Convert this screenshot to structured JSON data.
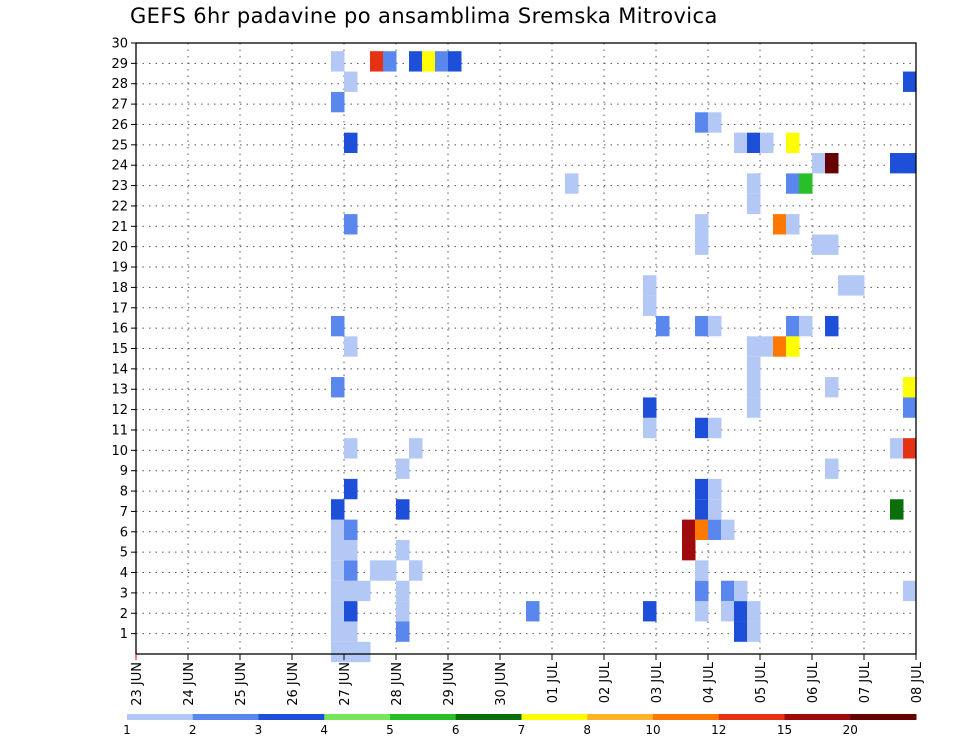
{
  "chart_data": {
    "type": "heatmap",
    "title": "GEFS 6hr padavine po ansamblima Sremska Mitrovica",
    "xlabel": "",
    "ylabel": "",
    "x_tick_labels": [
      "23 JUN",
      "24 JUN",
      "25 JUN",
      "26 JUN",
      "27 JUN",
      "28 JUN",
      "29 JUN",
      "30 JUN",
      "01 JUL",
      "02 JUL",
      "03 JUL",
      "04 JUL",
      "05 JUL",
      "06 JUL",
      "07 JUL",
      "08 JUL"
    ],
    "y_tick_labels": [
      "1",
      "2",
      "3",
      "4",
      "5",
      "6",
      "7",
      "8",
      "9",
      "10",
      "11",
      "12",
      "13",
      "14",
      "15",
      "16",
      "17",
      "18",
      "19",
      "20",
      "21",
      "22",
      "23",
      "24",
      "25",
      "26",
      "27",
      "28",
      "29",
      "30"
    ],
    "x_range_steps": [
      0,
      60
    ],
    "y_range_members": [
      0,
      30
    ],
    "grid": true,
    "legend_placement": "bottom",
    "legend": {
      "labels": [
        "1",
        "2",
        "3",
        "4",
        "5",
        "6",
        "7",
        "8",
        "10",
        "12",
        "15",
        "20"
      ],
      "colors": [
        "#b4c8f5",
        "#5a87ee",
        "#1e4fd8",
        "#78e65a",
        "#28bf28",
        "#0a6e0a",
        "#ffff00",
        "#ffb428",
        "#ff7800",
        "#e63214",
        "#a00a0a",
        "#640000"
      ]
    },
    "cells": [
      [
        15,
        0,
        1
      ],
      [
        15,
        1,
        1
      ],
      [
        16,
        1,
        1
      ],
      [
        15,
        2,
        1
      ],
      [
        15,
        3,
        1
      ],
      [
        15,
        4,
        1
      ],
      [
        15,
        5,
        1
      ],
      [
        15,
        6,
        1
      ],
      [
        15,
        7,
        1
      ],
      [
        16,
        0,
        1
      ],
      [
        17,
        0,
        1
      ],
      [
        16,
        2,
        3
      ],
      [
        16,
        3,
        1
      ],
      [
        17,
        3,
        1
      ],
      [
        16,
        4,
        2
      ],
      [
        19,
        4,
        1
      ],
      [
        16,
        5,
        1
      ],
      [
        16,
        6,
        2
      ],
      [
        15,
        7,
        3
      ],
      [
        16,
        8,
        3
      ],
      [
        16,
        10,
        1
      ],
      [
        15,
        13,
        2
      ],
      [
        16,
        15,
        1
      ],
      [
        15,
        16,
        2
      ],
      [
        16,
        21,
        2
      ],
      [
        16,
        25,
        3
      ],
      [
        15,
        27,
        2
      ],
      [
        16,
        28,
        1
      ],
      [
        15,
        29,
        1
      ],
      [
        18,
        4,
        1
      ],
      [
        20,
        3,
        1
      ],
      [
        20,
        2,
        1
      ],
      [
        20,
        1,
        2
      ],
      [
        20,
        5,
        1
      ],
      [
        20,
        7,
        3
      ],
      [
        20,
        9,
        1
      ],
      [
        21,
        10,
        1
      ],
      [
        21,
        4,
        1
      ],
      [
        18,
        29,
        12
      ],
      [
        19,
        29,
        2
      ],
      [
        21,
        29,
        3
      ],
      [
        22,
        29,
        7
      ],
      [
        23,
        29,
        2
      ],
      [
        24,
        29,
        3
      ],
      [
        30,
        2,
        2
      ],
      [
        33,
        23,
        1
      ],
      [
        39,
        11,
        1
      ],
      [
        39,
        12,
        3
      ],
      [
        39,
        2,
        3
      ],
      [
        39,
        18,
        1
      ],
      [
        39,
        17,
        1
      ],
      [
        40,
        16,
        2
      ],
      [
        42,
        6,
        15
      ],
      [
        42,
        5,
        15
      ],
      [
        43,
        6,
        10
      ],
      [
        44,
        6,
        2
      ],
      [
        45,
        6,
        1
      ],
      [
        43,
        7,
        3
      ],
      [
        44,
        7,
        1
      ],
      [
        43,
        8,
        3
      ],
      [
        44,
        8,
        1
      ],
      [
        43,
        11,
        3
      ],
      [
        44,
        11,
        1
      ],
      [
        43,
        16,
        2
      ],
      [
        44,
        16,
        1
      ],
      [
        43,
        20,
        1
      ],
      [
        43,
        21,
        1
      ],
      [
        43,
        26,
        2
      ],
      [
        44,
        26,
        1
      ],
      [
        43,
        2,
        1
      ],
      [
        43,
        3,
        2
      ],
      [
        43,
        4,
        1
      ],
      [
        45,
        3,
        2
      ],
      [
        45,
        2,
        1
      ],
      [
        46,
        2,
        3
      ],
      [
        46,
        3,
        1
      ],
      [
        47,
        2,
        1
      ],
      [
        46,
        1,
        3
      ],
      [
        47,
        1,
        1
      ],
      [
        47,
        12,
        1
      ],
      [
        47,
        13,
        1
      ],
      [
        47,
        14,
        1
      ],
      [
        47,
        15,
        1
      ],
      [
        48,
        15,
        1
      ],
      [
        49,
        15,
        10
      ],
      [
        50,
        15,
        7
      ],
      [
        47,
        22,
        1
      ],
      [
        47,
        23,
        1
      ],
      [
        46,
        25,
        1
      ],
      [
        47,
        25,
        3
      ],
      [
        48,
        25,
        1
      ],
      [
        50,
        25,
        7
      ],
      [
        49,
        21,
        10
      ],
      [
        50,
        21,
        1
      ],
      [
        50,
        23,
        2
      ],
      [
        51,
        23,
        5
      ],
      [
        50,
        16,
        2
      ],
      [
        51,
        16,
        1
      ],
      [
        52,
        24,
        1
      ],
      [
        53,
        24,
        20
      ],
      [
        53,
        16,
        3
      ],
      [
        53,
        13,
        1
      ],
      [
        53,
        9,
        1
      ],
      [
        52,
        20,
        1
      ],
      [
        53,
        20,
        1
      ],
      [
        54,
        18,
        1
      ],
      [
        55,
        18,
        1
      ],
      [
        58,
        7,
        6
      ],
      [
        58,
        10,
        1
      ],
      [
        59,
        10,
        12
      ],
      [
        58,
        24,
        3
      ],
      [
        59,
        24,
        3
      ],
      [
        59,
        28,
        3
      ],
      [
        59,
        13,
        7
      ],
      [
        59,
        12,
        2
      ],
      [
        59,
        3,
        1
      ]
    ]
  }
}
